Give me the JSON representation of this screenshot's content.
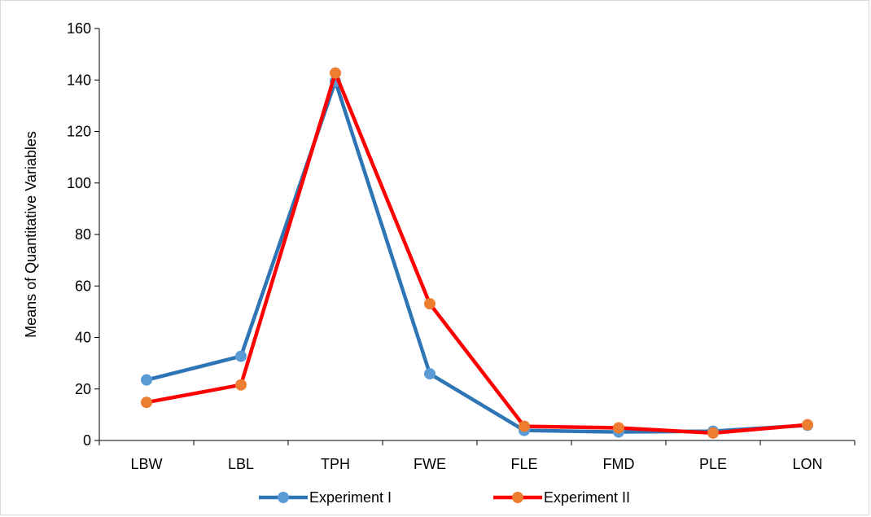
{
  "chart_data": {
    "type": "line",
    "title": "",
    "xlabel": "",
    "ylabel": "Means of Quantitative Variables",
    "categories": [
      "LBW",
      "LBL",
      "TPH",
      "FWE",
      "FLE",
      "FMD",
      "PLE",
      "LON"
    ],
    "ylim": [
      0,
      160
    ],
    "yticks": [
      0,
      20,
      40,
      60,
      80,
      100,
      120,
      140,
      160
    ],
    "grid": false,
    "legend_position": "bottom",
    "series": [
      {
        "name": "Experiment I",
        "line_color": "#2e75b6",
        "marker_color": "#5b9bd5",
        "values": [
          23.5,
          32.7,
          139.5,
          25.9,
          3.9,
          3.3,
          3.6,
          5.9
        ]
      },
      {
        "name": "Experiment II",
        "line_color": "#ff0000",
        "marker_color": "#ed7d31",
        "values": [
          14.8,
          21.6,
          142.7,
          53.1,
          5.5,
          4.9,
          2.9,
          6.1
        ]
      }
    ]
  }
}
